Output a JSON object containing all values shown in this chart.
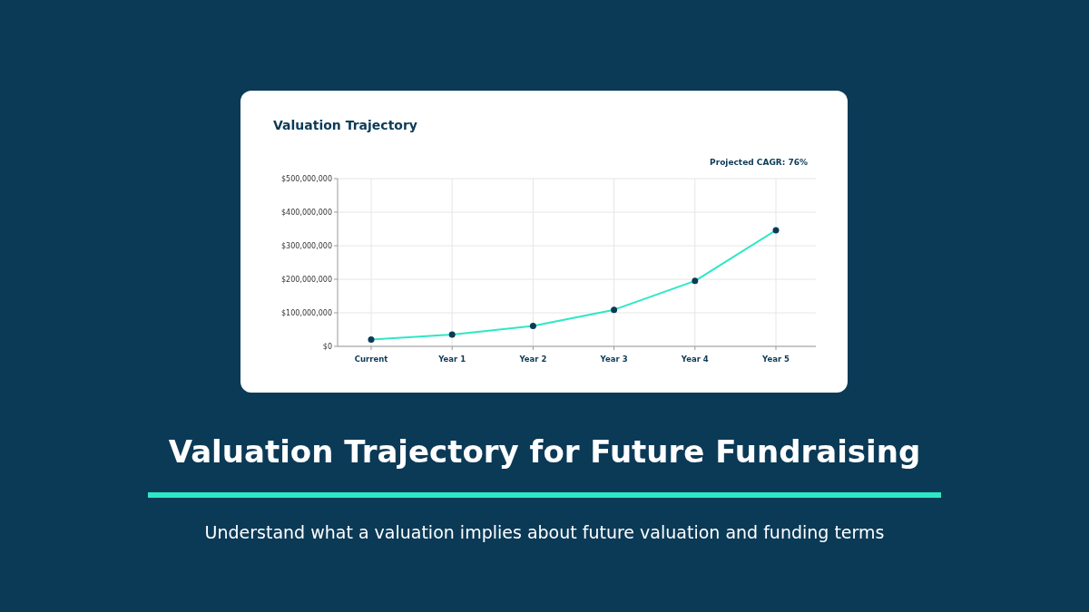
{
  "chart_data": {
    "type": "line",
    "title": "Valuation Trajectory",
    "subtitle": "Understand what a valuation implies about future valuation and funding terms",
    "annotations": [
      "Projected CAGR: 76%",
      "Valuation Trajectory for Future Fundraising"
    ],
    "categories": [
      "Current",
      "Year 1",
      "Year 2",
      "Year 3",
      "Year 4",
      "Year 5"
    ],
    "series": [
      {
        "color": "#2de8c4",
        "values": [
          20000000,
          35000000,
          61000000,
          109000000,
          195000000,
          346000000
        ]
      }
    ],
    "ylim": [
      0,
      500000000
    ],
    "yticks": [
      {
        "value": 0,
        "label": "$0"
      },
      {
        "value": 100000000,
        "label": "$100,000,000"
      },
      {
        "value": 200000000,
        "label": "$200,000,000"
      },
      {
        "value": 300000000,
        "label": "$300,000,000"
      },
      {
        "value": 400000000,
        "label": "$400,000,000"
      },
      {
        "value": 500000000,
        "label": "$500,000,000"
      }
    ],
    "grid": true,
    "marker": "circle",
    "line_style": "solid"
  }
}
